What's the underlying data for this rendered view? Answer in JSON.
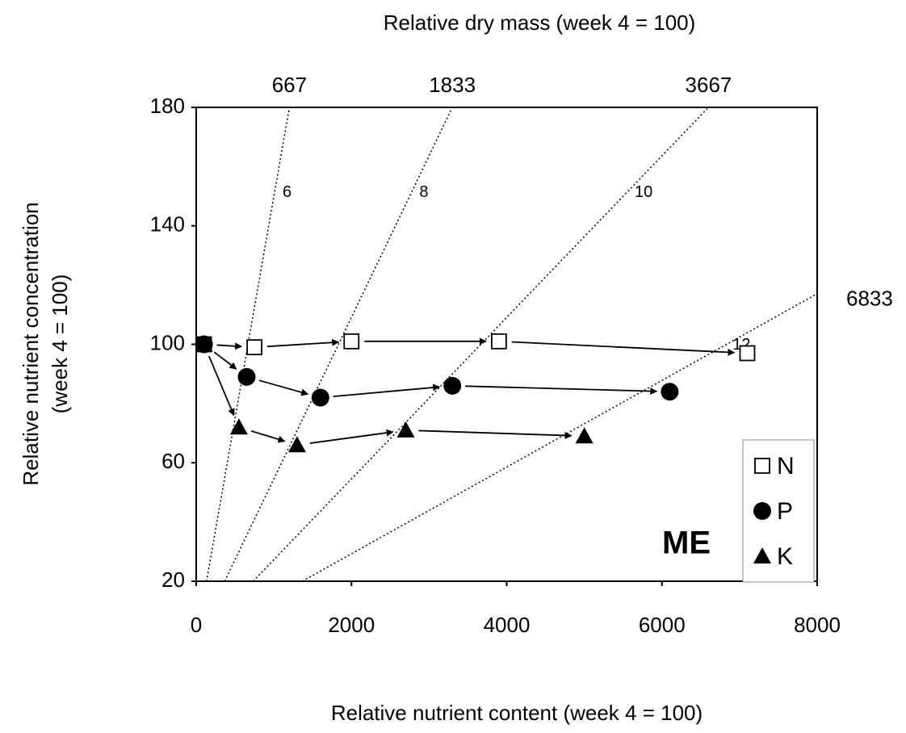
{
  "chart_data": {
    "type": "scatter",
    "x_label": "Relative nutrient content (week 4 = 100)",
    "y_label": [
      "Relative nutrient concentration",
      "(week 4 = 100)"
    ],
    "top_label": "Relative dry mass (week 4 = 100)",
    "annotation": "ME",
    "xlim": [
      0,
      8000
    ],
    "xticks": [
      0,
      2000,
      4000,
      6000,
      8000
    ],
    "ylim": [
      20,
      180
    ],
    "yticks": [
      20,
      60,
      100,
      140,
      180
    ],
    "connect": "arrows",
    "legend": "lower right",
    "dry_mass_lines": [
      {
        "value": 667,
        "week": 6
      },
      {
        "value": 1833,
        "week": 8
      },
      {
        "value": 3667,
        "week": 10
      },
      {
        "value": 6833,
        "week": 12
      }
    ],
    "series": [
      {
        "name": "N",
        "marker": "square-open",
        "color": "#000000",
        "x": [
          100,
          750,
          2000,
          3900,
          7100
        ],
        "values": [
          100,
          99,
          101,
          101,
          97
        ]
      },
      {
        "name": "P",
        "marker": "circle",
        "color": "#000000",
        "x": [
          100,
          650,
          1600,
          3300,
          6100
        ],
        "values": [
          100,
          89,
          82,
          86,
          84
        ]
      },
      {
        "name": "K",
        "marker": "triangle",
        "color": "#000000",
        "x": [
          100,
          550,
          1300,
          2700,
          5000
        ],
        "values": [
          100,
          72,
          66,
          71,
          69
        ]
      }
    ]
  }
}
